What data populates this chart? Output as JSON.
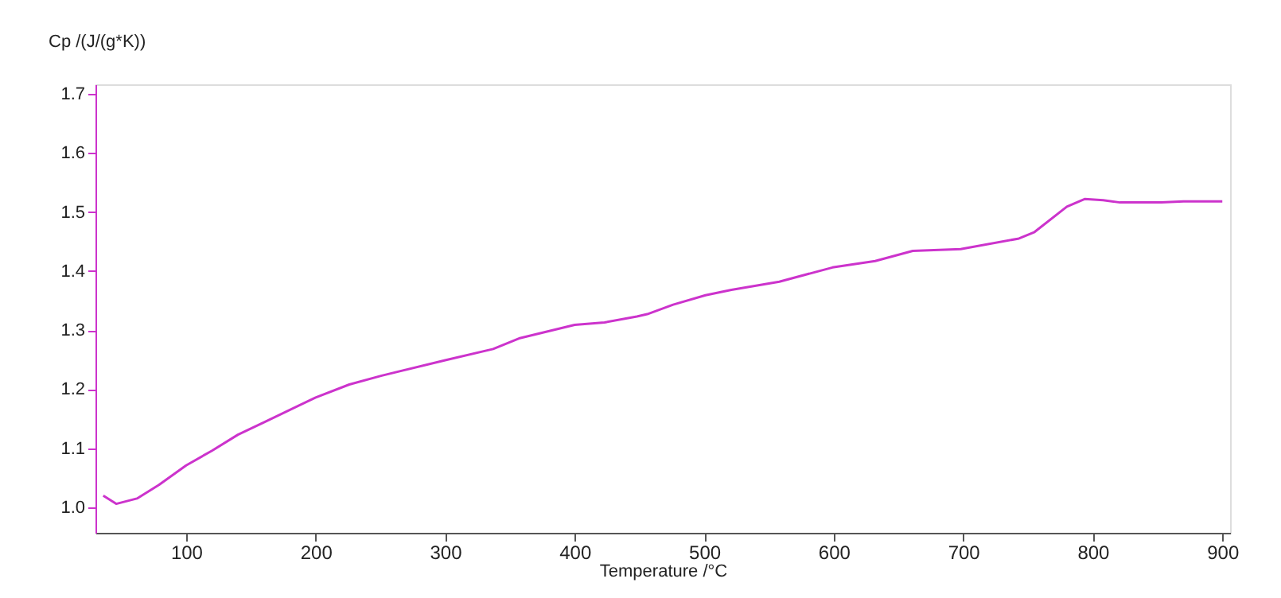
{
  "chart_data": {
    "type": "line",
    "xlabel": "Temperature /°C",
    "ylabel": "Cp /(J/(g*K))",
    "x": [
      36,
      46,
      62,
      79,
      100,
      120,
      140,
      161,
      200,
      226,
      251,
      300,
      337,
      357,
      400,
      423,
      448,
      456,
      476,
      501,
      521,
      558,
      599,
      632,
      661,
      698,
      743,
      755,
      780,
      794,
      808,
      821,
      853,
      870,
      900
    ],
    "series": [
      {
        "color": "#cc33cc",
        "values": [
          1.02,
          1.006,
          1.015,
          1.038,
          1.071,
          1.096,
          1.123,
          1.145,
          1.186,
          1.208,
          1.223,
          1.249,
          1.268,
          1.286,
          1.309,
          1.313,
          1.323,
          1.327,
          1.343,
          1.359,
          1.368,
          1.382,
          1.406,
          1.417,
          1.434,
          1.437,
          1.455,
          1.466,
          1.509,
          1.522,
          1.52,
          1.516,
          1.516,
          1.518,
          1.518
        ]
      }
    ],
    "xlim": [
      30,
      906
    ],
    "ylim": [
      0.957,
      1.716
    ],
    "xticks": [
      100,
      200,
      300,
      400,
      500,
      600,
      700,
      800,
      900
    ],
    "yticks": [
      {
        "value": 1.0,
        "label": "1.0"
      },
      {
        "value": 1.1,
        "label": "1.1"
      },
      {
        "value": 1.2,
        "label": "1.2"
      },
      {
        "value": 1.3,
        "label": "1.3"
      },
      {
        "value": 1.4,
        "label": "1.4"
      },
      {
        "value": 1.5,
        "label": "1.5"
      },
      {
        "value": 1.6,
        "label": "1.6"
      },
      {
        "value": 1.7,
        "label": "1.7"
      }
    ],
    "grid": false,
    "legend": false,
    "marker": "none",
    "line_style": "solid"
  }
}
